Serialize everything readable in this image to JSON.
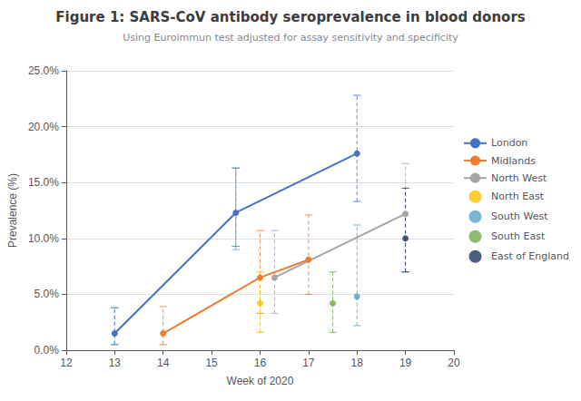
{
  "chart_data": {
    "type": "line",
    "title": "Figure 1: SARS-CoV antibody seroprevalence in blood donors",
    "subtitle": "Using Euroimmun test adjusted for assay sensitivity and specificity",
    "xlabel": "Week of 2020",
    "ylabel": "Prevalence (%)",
    "xlim": [
      12,
      20
    ],
    "ylim": [
      0.0,
      0.25
    ],
    "xticks": [
      12,
      13,
      14,
      15,
      16,
      17,
      18,
      19,
      20
    ],
    "yticks": [
      {
        "value": 0.0,
        "label": "0.0%"
      },
      {
        "value": 0.05,
        "label": "5.0%"
      },
      {
        "value": 0.1,
        "label": "10.0%"
      },
      {
        "value": 0.15,
        "label": "15.0%"
      },
      {
        "value": 0.2,
        "label": "20.0%"
      },
      {
        "value": 0.25,
        "label": "25.0%"
      }
    ],
    "grid": "y",
    "legend": "right",
    "series": [
      {
        "name": "London",
        "type": "line",
        "marker": "circle",
        "line_style": "solid",
        "color": "#4472C4",
        "x": [
          13,
          15.5,
          18
        ],
        "values": [
          0.015,
          0.123,
          0.176
        ],
        "ci_low": [
          0.005,
          0.093,
          0.133
        ],
        "ci_high": [
          0.038,
          0.163,
          0.228
        ]
      },
      {
        "name": "Midlands",
        "type": "line",
        "marker": "circle",
        "line_style": "solid",
        "color": "#ED7D31",
        "x": [
          14,
          16,
          17
        ],
        "values": [
          0.015,
          0.065,
          0.081
        ],
        "ci_low": [
          0.005,
          0.033,
          0.05
        ],
        "ci_high": [
          0.039,
          0.107,
          0.121
        ]
      },
      {
        "name": "North West",
        "type": "line",
        "marker": "circle",
        "line_style": "solid",
        "color": "#A5A5A5",
        "x": [
          16.3,
          19
        ],
        "values": [
          0.065,
          0.122
        ],
        "ci_low": [
          0.033,
          0.07
        ],
        "ci_high": [
          0.107,
          0.167
        ]
      },
      {
        "name": "North East",
        "type": "scatter",
        "marker": "circle",
        "color": "#FFC000",
        "x": [
          16
        ],
        "values": [
          0.042
        ],
        "ci_low": [
          0.016
        ],
        "ci_high": [
          0.07
        ]
      },
      {
        "name": "South West",
        "type": "scatter",
        "marker": "circle",
        "color": "#5BA3C9",
        "x": [
          13,
          15.5,
          18
        ],
        "values": [
          null,
          null,
          0.048
        ],
        "ci_low": [
          0.005,
          0.09,
          0.022
        ],
        "ci_high": [
          0.038,
          0.163,
          0.112
        ]
      },
      {
        "name": "South East",
        "type": "scatter",
        "marker": "circle",
        "color": "#70AD47",
        "x": [
          17.5
        ],
        "values": [
          0.042
        ],
        "ci_low": [
          0.016
        ],
        "ci_high": [
          0.07
        ]
      },
      {
        "name": "East of England",
        "type": "scatter",
        "marker": "circle",
        "color": "#1F3864",
        "x": [
          19
        ],
        "values": [
          0.1
        ],
        "ci_low": [
          0.07
        ],
        "ci_high": [
          0.145
        ]
      }
    ]
  }
}
